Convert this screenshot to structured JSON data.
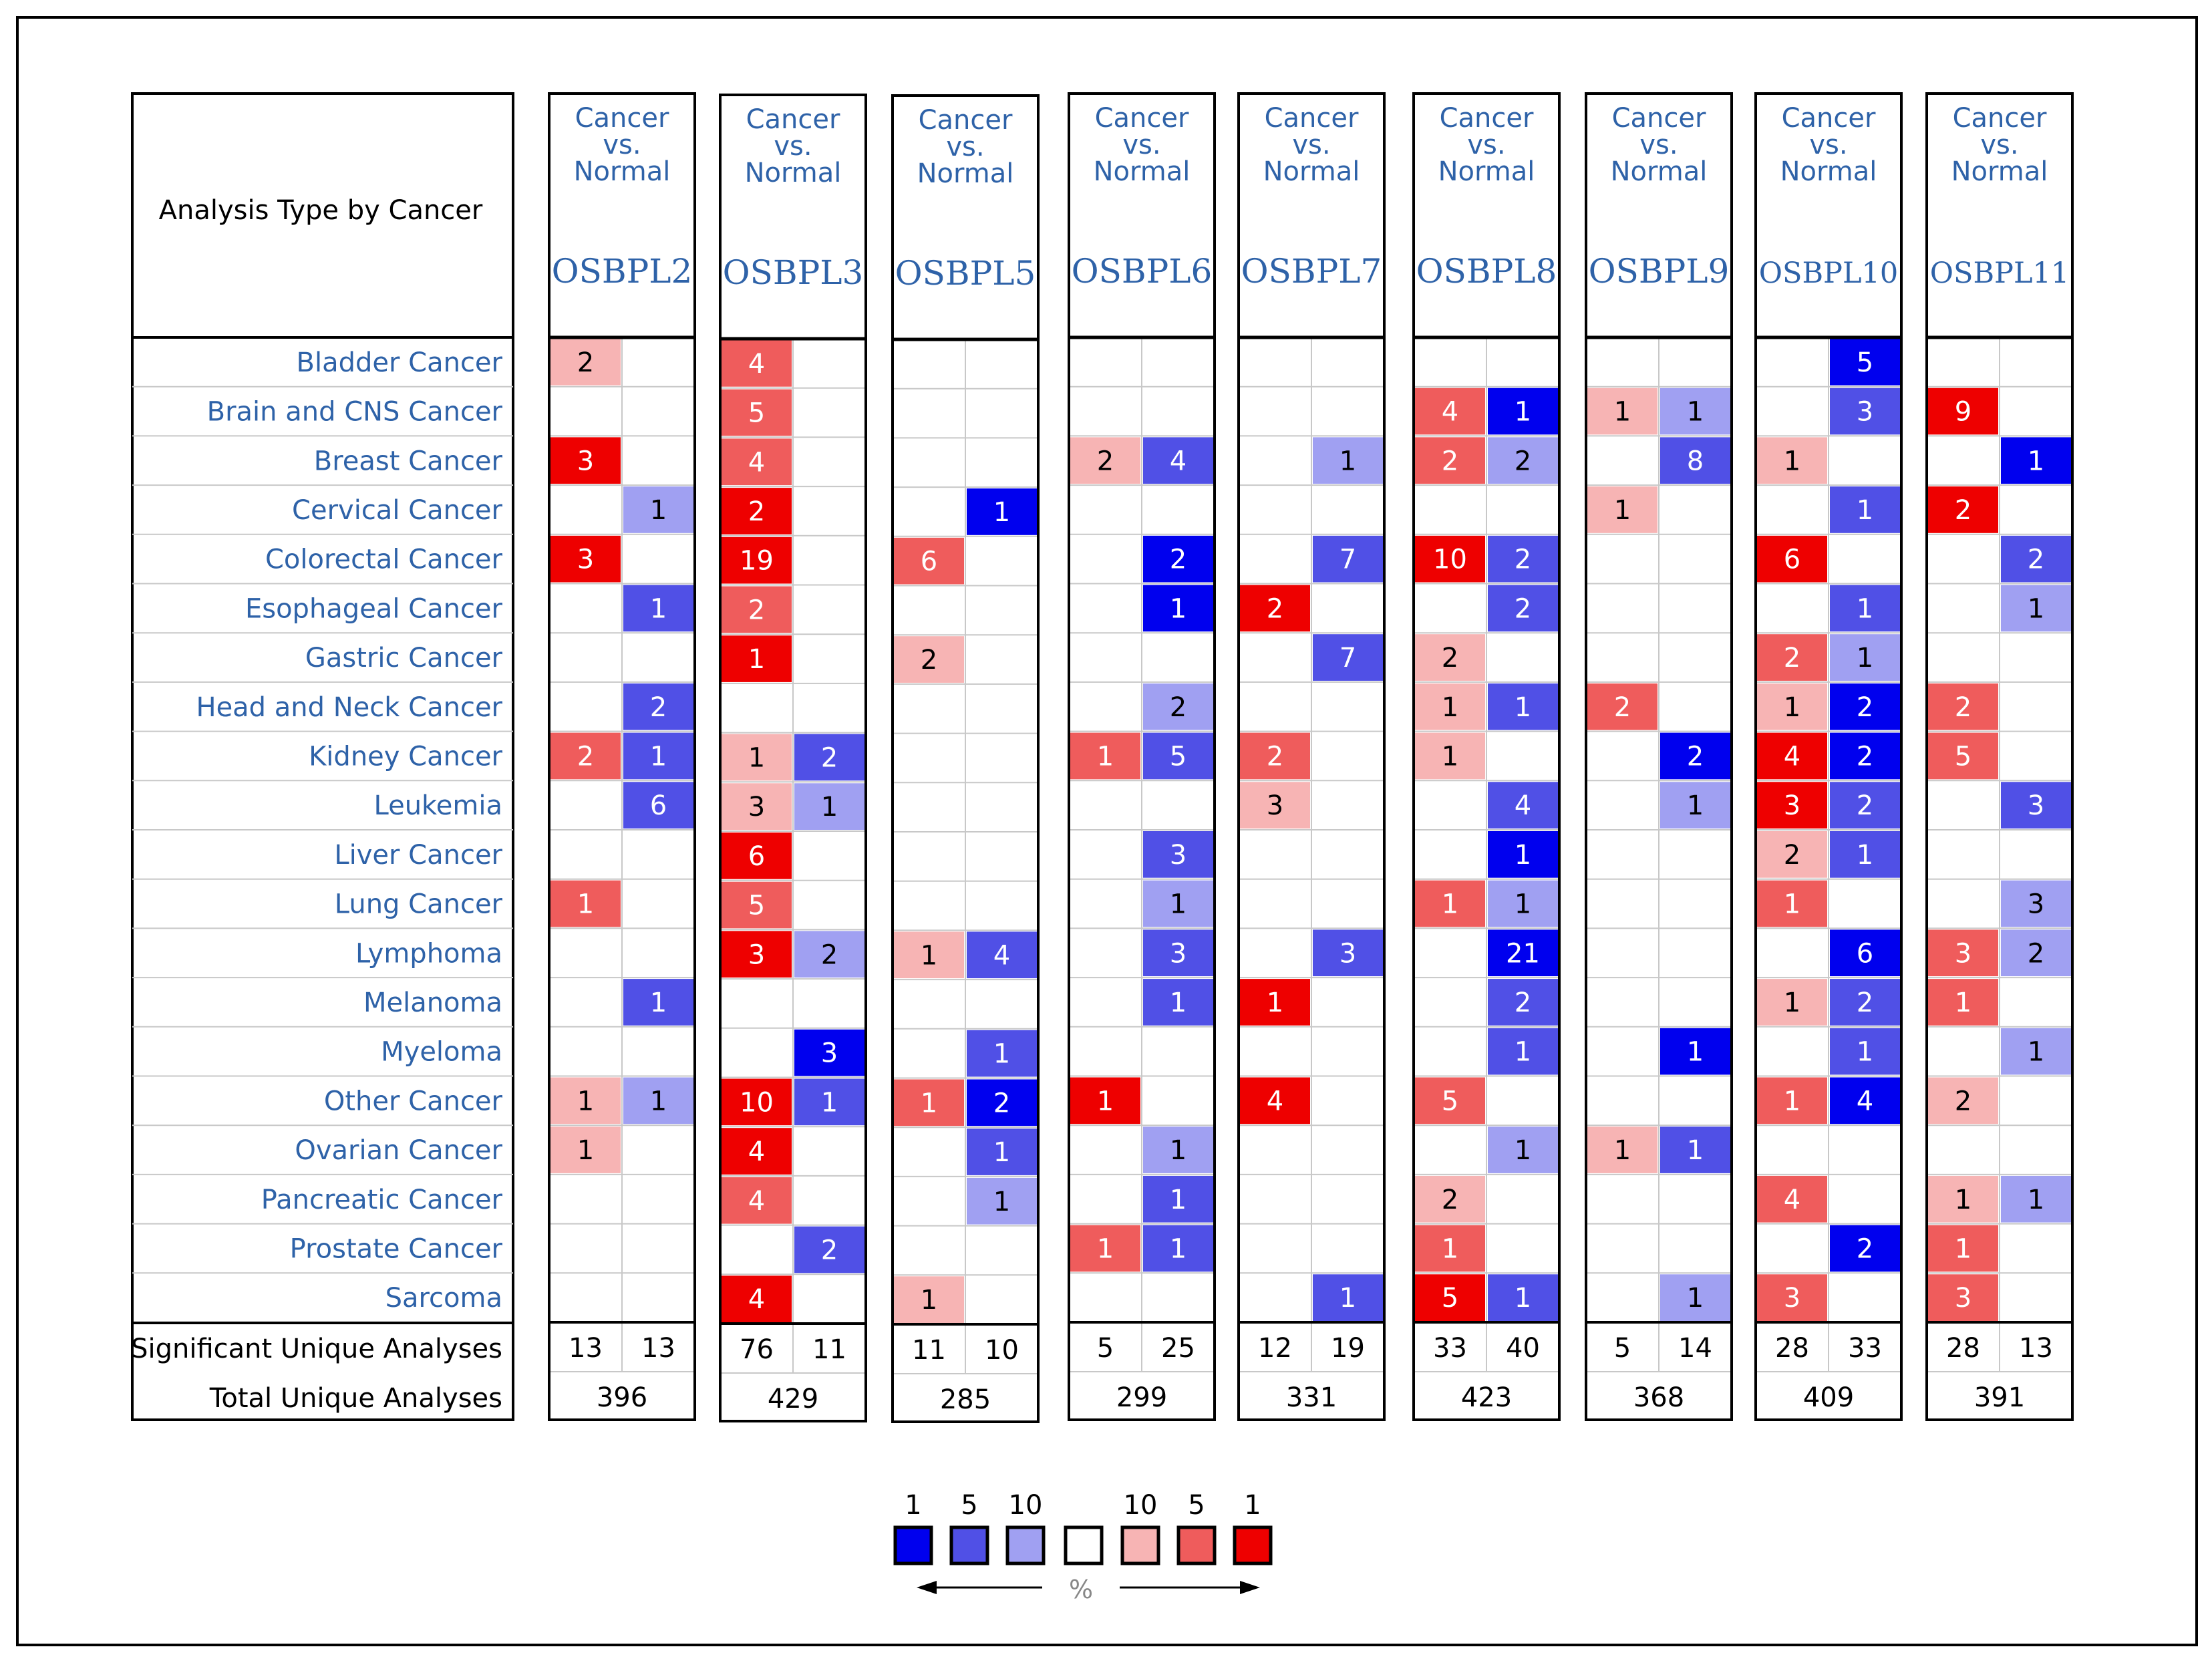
{
  "header": {
    "analysis_type_label": "Analysis Type by Cancer",
    "comparison_line1": "Cancer",
    "comparison_line2": "vs.",
    "comparison_line3": "Normal"
  },
  "footer_labels": {
    "significant": "Significant Unique Analyses",
    "total": "Total Unique Analyses"
  },
  "colors": {
    "blue_1": "#0000ee",
    "blue_5": "#5050e6",
    "blue_10": "#a0a0f2",
    "red_10": "#f7b4b4",
    "red_5": "#ef5c5c",
    "red_1": "#ee0000",
    "label_blue": "#2e62a8",
    "grid": "#c8c8c8"
  },
  "chart_data": {
    "type": "heatmap",
    "title": "Analysis Type by Cancer",
    "row_labels": [
      "Bladder Cancer",
      "Brain and CNS Cancer",
      "Breast Cancer",
      "Cervical Cancer",
      "Colorectal Cancer",
      "Esophageal Cancer",
      "Gastric Cancer",
      "Head and Neck Cancer",
      "Kidney Cancer",
      "Leukemia",
      "Liver Cancer",
      "Lung Cancer",
      "Lymphoma",
      "Melanoma",
      "Myeloma",
      "Other Cancer",
      "Ovarian Cancer",
      "Pancreatic Cancer",
      "Prostate Cancer",
      "Sarcoma"
    ],
    "genes": [
      {
        "name": "OSBPL2",
        "up": [
          [
            "2",
            "red_10"
          ],
          null,
          [
            "3",
            "red_1"
          ],
          null,
          [
            "3",
            "red_1"
          ],
          null,
          null,
          null,
          [
            "2",
            "red_5"
          ],
          null,
          null,
          [
            "1",
            "red_5"
          ],
          null,
          null,
          null,
          [
            "1",
            "red_10"
          ],
          [
            "1",
            "red_10"
          ],
          null,
          null,
          null
        ],
        "down": [
          null,
          null,
          null,
          [
            "1",
            "blue_10"
          ],
          null,
          [
            "1",
            "blue_5"
          ],
          null,
          [
            "2",
            "blue_5"
          ],
          [
            "1",
            "blue_5"
          ],
          [
            "6",
            "blue_5"
          ],
          null,
          null,
          null,
          [
            "1",
            "blue_5"
          ],
          null,
          [
            "1",
            "blue_10"
          ],
          null,
          null,
          null,
          null
        ],
        "sig_up": "13",
        "sig_down": "13",
        "total": "396"
      },
      {
        "name": "OSBPL3",
        "up": [
          [
            "4",
            "red_5"
          ],
          [
            "5",
            "red_5"
          ],
          [
            "4",
            "red_5"
          ],
          [
            "2",
            "red_1"
          ],
          [
            "19",
            "red_1"
          ],
          [
            "2",
            "red_5"
          ],
          [
            "1",
            "red_1"
          ],
          null,
          [
            "1",
            "red_10"
          ],
          [
            "3",
            "red_10"
          ],
          [
            "6",
            "red_1"
          ],
          [
            "5",
            "red_5"
          ],
          [
            "3",
            "red_1"
          ],
          null,
          null,
          [
            "10",
            "red_1"
          ],
          [
            "4",
            "red_1"
          ],
          [
            "4",
            "red_5"
          ],
          null,
          [
            "4",
            "red_1"
          ]
        ],
        "down": [
          null,
          null,
          null,
          null,
          null,
          null,
          null,
          null,
          [
            "2",
            "blue_5"
          ],
          [
            "1",
            "blue_10"
          ],
          null,
          null,
          [
            "2",
            "blue_10"
          ],
          null,
          [
            "3",
            "blue_1"
          ],
          [
            "1",
            "blue_5"
          ],
          null,
          null,
          [
            "2",
            "blue_5"
          ],
          null
        ],
        "sig_up": "76",
        "sig_down": "11",
        "total": "429"
      },
      {
        "name": "OSBPL5",
        "up": [
          null,
          null,
          null,
          null,
          [
            "6",
            "red_5"
          ],
          null,
          [
            "2",
            "red_10"
          ],
          null,
          null,
          null,
          null,
          null,
          [
            "1",
            "red_10"
          ],
          null,
          null,
          [
            "1",
            "red_5"
          ],
          null,
          null,
          null,
          [
            "1",
            "red_10"
          ]
        ],
        "down": [
          null,
          null,
          null,
          [
            "1",
            "blue_1"
          ],
          null,
          null,
          null,
          null,
          null,
          null,
          null,
          null,
          [
            "4",
            "blue_5"
          ],
          null,
          [
            "1",
            "blue_5"
          ],
          [
            "2",
            "blue_1"
          ],
          [
            "1",
            "blue_5"
          ],
          [
            "1",
            "blue_10"
          ],
          null,
          null
        ],
        "sig_up": "11",
        "sig_down": "10",
        "total": "285"
      },
      {
        "name": "OSBPL6",
        "up": [
          null,
          null,
          [
            "2",
            "red_10"
          ],
          null,
          null,
          null,
          null,
          null,
          [
            "1",
            "red_5"
          ],
          null,
          null,
          null,
          null,
          null,
          null,
          [
            "1",
            "red_1"
          ],
          null,
          null,
          [
            "1",
            "red_5"
          ],
          null
        ],
        "down": [
          null,
          null,
          [
            "4",
            "blue_5"
          ],
          null,
          [
            "2",
            "blue_1"
          ],
          [
            "1",
            "blue_1"
          ],
          null,
          [
            "2",
            "blue_10"
          ],
          [
            "5",
            "blue_5"
          ],
          null,
          [
            "3",
            "blue_5"
          ],
          [
            "1",
            "blue_10"
          ],
          [
            "3",
            "blue_5"
          ],
          [
            "1",
            "blue_5"
          ],
          null,
          null,
          [
            "1",
            "blue_10"
          ],
          [
            "1",
            "blue_5"
          ],
          [
            "1",
            "blue_5"
          ],
          null
        ],
        "sig_up": "5",
        "sig_down": "25",
        "total": "299"
      },
      {
        "name": "OSBPL7",
        "up": [
          null,
          null,
          null,
          null,
          null,
          [
            "2",
            "red_1"
          ],
          null,
          null,
          [
            "2",
            "red_5"
          ],
          [
            "3",
            "red_10"
          ],
          null,
          null,
          null,
          [
            "1",
            "red_1"
          ],
          null,
          [
            "4",
            "red_1"
          ],
          null,
          null,
          null,
          null
        ],
        "down": [
          null,
          null,
          [
            "1",
            "blue_10"
          ],
          null,
          [
            "7",
            "blue_5"
          ],
          null,
          [
            "7",
            "blue_5"
          ],
          null,
          null,
          null,
          null,
          null,
          [
            "3",
            "blue_5"
          ],
          null,
          null,
          null,
          null,
          null,
          null,
          [
            "1",
            "blue_5"
          ]
        ],
        "sig_up": "12",
        "sig_down": "19",
        "total": "331"
      },
      {
        "name": "OSBPL8",
        "up": [
          null,
          [
            "4",
            "red_5"
          ],
          [
            "2",
            "red_5"
          ],
          null,
          [
            "10",
            "red_1"
          ],
          null,
          [
            "2",
            "red_10"
          ],
          [
            "1",
            "red_10"
          ],
          [
            "1",
            "red_10"
          ],
          null,
          null,
          [
            "1",
            "red_5"
          ],
          null,
          null,
          null,
          [
            "5",
            "red_5"
          ],
          null,
          [
            "2",
            "red_10"
          ],
          [
            "1",
            "red_5"
          ],
          [
            "5",
            "red_1"
          ]
        ],
        "down": [
          null,
          [
            "1",
            "blue_1"
          ],
          [
            "2",
            "blue_10"
          ],
          null,
          [
            "2",
            "blue_5"
          ],
          [
            "2",
            "blue_5"
          ],
          null,
          [
            "1",
            "blue_5"
          ],
          null,
          [
            "4",
            "blue_5"
          ],
          [
            "1",
            "blue_1"
          ],
          [
            "1",
            "blue_10"
          ],
          [
            "21",
            "blue_1"
          ],
          [
            "2",
            "blue_5"
          ],
          [
            "1",
            "blue_5"
          ],
          null,
          [
            "1",
            "blue_10"
          ],
          null,
          null,
          [
            "1",
            "blue_5"
          ]
        ],
        "sig_up": "33",
        "sig_down": "40",
        "total": "423"
      },
      {
        "name": "OSBPL9",
        "up": [
          null,
          [
            "1",
            "red_10"
          ],
          null,
          [
            "1",
            "red_10"
          ],
          null,
          null,
          null,
          [
            "2",
            "red_5"
          ],
          null,
          null,
          null,
          null,
          null,
          null,
          null,
          null,
          [
            "1",
            "red_10"
          ],
          null,
          null,
          null
        ],
        "down": [
          null,
          [
            "1",
            "blue_10"
          ],
          [
            "8",
            "blue_5"
          ],
          null,
          null,
          null,
          null,
          null,
          [
            "2",
            "blue_1"
          ],
          [
            "1",
            "blue_10"
          ],
          null,
          null,
          null,
          null,
          [
            "1",
            "blue_1"
          ],
          null,
          [
            "1",
            "blue_5"
          ],
          null,
          null,
          [
            "1",
            "blue_10"
          ]
        ],
        "sig_up": "5",
        "sig_down": "14",
        "total": "368"
      },
      {
        "name": "OSBPL10",
        "up": [
          null,
          null,
          [
            "1",
            "red_10"
          ],
          null,
          [
            "6",
            "red_1"
          ],
          null,
          [
            "2",
            "red_5"
          ],
          [
            "1",
            "red_10"
          ],
          [
            "4",
            "red_1"
          ],
          [
            "3",
            "red_1"
          ],
          [
            "2",
            "red_10"
          ],
          [
            "1",
            "red_5"
          ],
          null,
          [
            "1",
            "red_10"
          ],
          null,
          [
            "1",
            "red_5"
          ],
          null,
          [
            "4",
            "red_5"
          ],
          null,
          [
            "3",
            "red_5"
          ]
        ],
        "down": [
          [
            "5",
            "blue_1"
          ],
          [
            "3",
            "blue_5"
          ],
          null,
          [
            "1",
            "blue_5"
          ],
          null,
          [
            "1",
            "blue_5"
          ],
          [
            "1",
            "blue_10"
          ],
          [
            "2",
            "blue_1"
          ],
          [
            "2",
            "blue_1"
          ],
          [
            "2",
            "blue_5"
          ],
          [
            "1",
            "blue_5"
          ],
          null,
          [
            "6",
            "blue_1"
          ],
          [
            "2",
            "blue_5"
          ],
          [
            "1",
            "blue_5"
          ],
          [
            "4",
            "blue_1"
          ],
          null,
          null,
          [
            "2",
            "blue_1"
          ],
          null
        ],
        "sig_up": "28",
        "sig_down": "33",
        "total": "409"
      },
      {
        "name": "OSBPL11",
        "up": [
          null,
          [
            "9",
            "red_1"
          ],
          null,
          [
            "2",
            "red_1"
          ],
          null,
          null,
          null,
          [
            "2",
            "red_5"
          ],
          [
            "5",
            "red_5"
          ],
          null,
          null,
          null,
          [
            "3",
            "red_5"
          ],
          [
            "1",
            "red_5"
          ],
          null,
          [
            "2",
            "red_10"
          ],
          null,
          [
            "1",
            "red_10"
          ],
          [
            "1",
            "red_5"
          ],
          [
            "3",
            "red_5"
          ]
        ],
        "down": [
          null,
          null,
          [
            "1",
            "blue_1"
          ],
          null,
          [
            "2",
            "blue_5"
          ],
          [
            "1",
            "blue_10"
          ],
          null,
          null,
          null,
          [
            "3",
            "blue_5"
          ],
          null,
          [
            "3",
            "blue_10"
          ],
          [
            "2",
            "blue_10"
          ],
          null,
          [
            "1",
            "blue_10"
          ],
          null,
          null,
          [
            "1",
            "blue_10"
          ],
          null,
          null
        ],
        "sig_up": "28",
        "sig_down": "13",
        "total": "391"
      }
    ],
    "legend": {
      "blue_labels": [
        "1",
        "5",
        "10"
      ],
      "red_labels": [
        "10",
        "5",
        "1"
      ],
      "swatches": [
        "blue_1",
        "blue_5",
        "blue_10",
        "white",
        "red_10",
        "red_5",
        "red_1"
      ],
      "axis_label": "%"
    }
  }
}
